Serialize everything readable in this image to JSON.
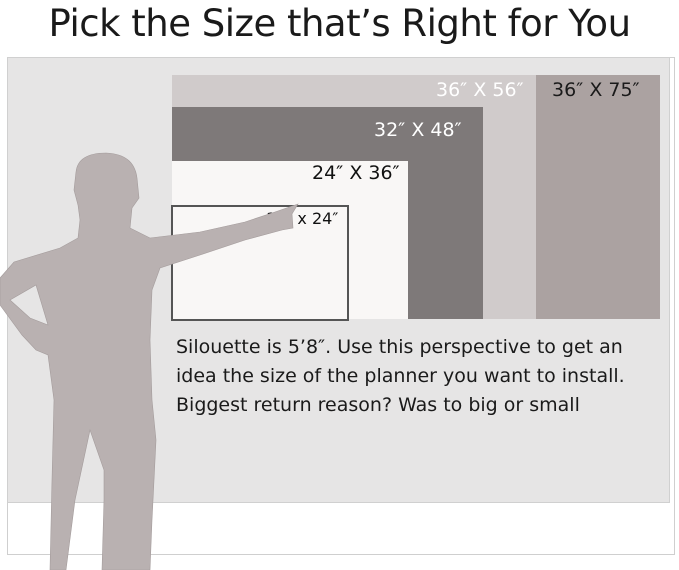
{
  "title": "Pick the Size that’s Right for You",
  "sizes": [
    {
      "label": "36″ X 75″",
      "color": "#aba2a1"
    },
    {
      "label": "36″ X 56″",
      "color": "#d0cbcb"
    },
    {
      "label": "32″ X 48″",
      "color": "#7e7979"
    },
    {
      "label": "24″ X 36″",
      "color": "#f9f7f6"
    },
    {
      "label": "19″ x 24″",
      "color": "#f9f7f6"
    }
  ],
  "note": {
    "lines": [
      "Silouette is 5’8″. Use this perspective to get an",
      "idea the size of the planner you want to install.",
      "Biggest return reason? Was to big or small"
    ]
  },
  "silhouette_color": "#b9b1b1"
}
